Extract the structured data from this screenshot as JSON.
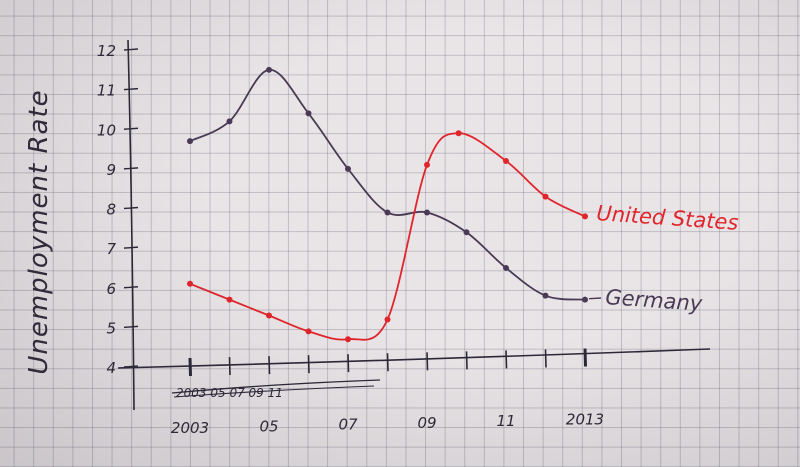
{
  "chart_data": {
    "type": "line",
    "title": "",
    "ylabel": "Unemployment Rate",
    "xlabel": "",
    "ylim": [
      4,
      12
    ],
    "xlim": [
      2003,
      2013
    ],
    "x_tick_labels": [
      {
        "x": 2003,
        "label": "2003"
      },
      {
        "x": 2005,
        "label": "05"
      },
      {
        "x": 2007,
        "label": "07"
      },
      {
        "x": 2009,
        "label": "09"
      },
      {
        "x": 2011,
        "label": "11"
      },
      {
        "x": 2013,
        "label": "2013"
      }
    ],
    "crossed_out_tick_row": "2003  05  07  09  11",
    "y_ticks": [
      4,
      5,
      6,
      7,
      8,
      9,
      10,
      11,
      12
    ],
    "grid": false,
    "series": [
      {
        "name": "Germany",
        "color": "#4a3a55",
        "points": [
          {
            "x": 2003.0,
            "y": 9.7
          },
          {
            "x": 2004.0,
            "y": 10.2
          },
          {
            "x": 2005.0,
            "y": 11.5
          },
          {
            "x": 2006.0,
            "y": 10.4
          },
          {
            "x": 2007.0,
            "y": 9.0
          },
          {
            "x": 2008.0,
            "y": 7.9
          },
          {
            "x": 2009.0,
            "y": 7.9
          },
          {
            "x": 2010.0,
            "y": 7.4
          },
          {
            "x": 2011.0,
            "y": 6.5
          },
          {
            "x": 2012.0,
            "y": 5.8
          },
          {
            "x": 2013.0,
            "y": 5.7
          }
        ]
      },
      {
        "name": "United States",
        "color": "#e0252c",
        "points": [
          {
            "x": 2003.0,
            "y": 6.1
          },
          {
            "x": 2004.0,
            "y": 5.7
          },
          {
            "x": 2005.0,
            "y": 5.3
          },
          {
            "x": 2006.0,
            "y": 4.9
          },
          {
            "x": 2007.0,
            "y": 4.7
          },
          {
            "x": 2008.0,
            "y": 5.2
          },
          {
            "x": 2009.0,
            "y": 9.1
          },
          {
            "x": 2009.8,
            "y": 9.9
          },
          {
            "x": 2011.0,
            "y": 9.2
          },
          {
            "x": 2012.0,
            "y": 8.3
          },
          {
            "x": 2013.0,
            "y": 7.8
          }
        ]
      }
    ]
  }
}
